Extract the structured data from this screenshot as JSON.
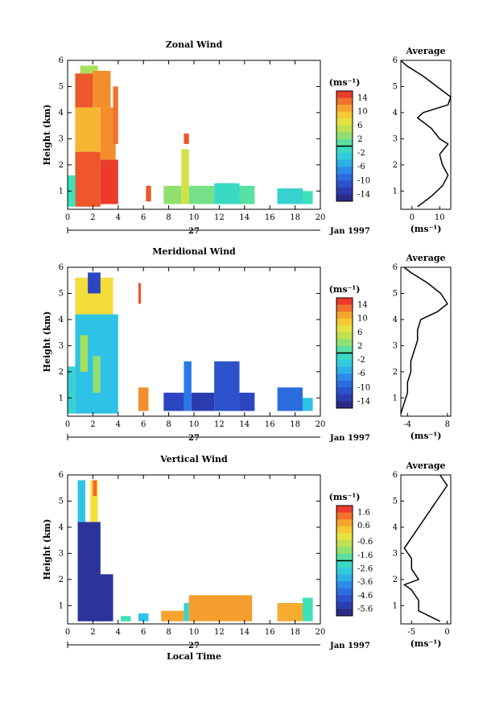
{
  "panels": [
    {
      "title": "Zonal Wind",
      "ylabel": "Height (km)",
      "xticks": [
        "0",
        "2",
        "4",
        "6",
        "8",
        "10",
        "12",
        "14",
        "16",
        "18",
        "20"
      ],
      "yticks": [
        "1",
        "2",
        "3",
        "4",
        "5",
        "6"
      ],
      "date_day": "27",
      "date_label": "Jan 1997",
      "cbar_unit": "(ms⁻¹)",
      "cbar_labels": [
        "14",
        "10",
        "6",
        "2",
        "-2",
        "-6",
        "-10",
        "-14"
      ],
      "avg_title": "Average",
      "avg_xticks": [
        "0",
        "10"
      ],
      "avg_yticks": [
        "1",
        "2",
        "3",
        "4",
        "5",
        "6"
      ],
      "avg_unit": "(ms⁻¹)"
    },
    {
      "title": "Meridional Wind",
      "ylabel": "Height (km)",
      "xticks": [
        "0",
        "2",
        "4",
        "6",
        "8",
        "10",
        "12",
        "14",
        "16",
        "18",
        "20"
      ],
      "yticks": [
        "1",
        "2",
        "3",
        "4",
        "5",
        "6"
      ],
      "date_day": "27",
      "date_label": "Jan 1997",
      "cbar_unit": "(ms⁻¹)",
      "cbar_labels": [
        "14",
        "10",
        "6",
        "2",
        "-2",
        "-6",
        "-10",
        "-14"
      ],
      "avg_title": "Average",
      "avg_xticks": [
        "-4",
        "8"
      ],
      "avg_yticks": [
        "1",
        "2",
        "3",
        "4",
        "5",
        "6"
      ],
      "avg_unit": "(ms⁻¹)"
    },
    {
      "title": "Vertical Wind",
      "ylabel": "Height (km)",
      "xticks": [
        "0",
        "2",
        "4",
        "6",
        "8",
        "10",
        "12",
        "14",
        "16",
        "18",
        "20"
      ],
      "yticks": [
        "1",
        "2",
        "3",
        "4",
        "5",
        "6"
      ],
      "date_day": "27",
      "date_label": "Jan 1997",
      "xlabel": "Local Time",
      "cbar_unit": "(ms⁻¹)",
      "cbar_labels": [
        "1.6",
        "0.6",
        "-0.6",
        "-1.6",
        "-2.6",
        "-3.6",
        "-4.6",
        "-5.6"
      ],
      "avg_title": "Average",
      "avg_xticks": [
        "-5",
        "0"
      ],
      "avg_yticks": [
        "1",
        "2",
        "3",
        "4",
        "5",
        "6"
      ],
      "avg_unit": "(ms⁻¹)"
    }
  ],
  "chart_data": [
    {
      "type": "heatmap",
      "title": "Zonal Wind",
      "ylabel": "Height (km)",
      "xlim": [
        0,
        20
      ],
      "ylim": [
        0.3,
        6
      ],
      "colorbar_range": [
        -16,
        16
      ],
      "colorbar_ticks": [
        14,
        10,
        6,
        2,
        -2,
        -6,
        -10,
        -14
      ],
      "cells": [
        {
          "x0": 0.6,
          "x1": 2.6,
          "y0": 0.4,
          "y1": 2.5,
          "v": 14
        },
        {
          "x0": 0.6,
          "x1": 2.6,
          "y0": 2.5,
          "y1": 4.2,
          "v": 10
        },
        {
          "x0": 0.6,
          "x1": 2.0,
          "y0": 4.2,
          "y1": 5.5,
          "v": 14
        },
        {
          "x0": 1.0,
          "x1": 2.4,
          "y0": 5.5,
          "y1": 5.8,
          "v": 4
        },
        {
          "x0": 2.0,
          "x1": 3.4,
          "y0": 4.2,
          "y1": 5.6,
          "v": 12
        },
        {
          "x0": 2.6,
          "x1": 4.0,
          "y0": 0.5,
          "y1": 2.2,
          "v": 15
        },
        {
          "x0": 2.6,
          "x1": 3.8,
          "y0": 2.2,
          "y1": 4.2,
          "v": 12
        },
        {
          "x0": 3.6,
          "x1": 4.0,
          "y0": 2.8,
          "y1": 5.0,
          "v": 13
        },
        {
          "x0": 0.0,
          "x1": 0.6,
          "y0": 0.4,
          "y1": 1.6,
          "v": 0
        },
        {
          "x0": 6.2,
          "x1": 6.6,
          "y0": 0.6,
          "y1": 1.2,
          "v": 14
        },
        {
          "x0": 7.6,
          "x1": 9.0,
          "y0": 0.5,
          "y1": 1.2,
          "v": 3
        },
        {
          "x0": 9.0,
          "x1": 9.6,
          "y0": 0.5,
          "y1": 2.6,
          "v": 6
        },
        {
          "x0": 9.2,
          "x1": 9.6,
          "y0": 2.8,
          "y1": 3.2,
          "v": 14
        },
        {
          "x0": 9.6,
          "x1": 11.6,
          "y0": 0.5,
          "y1": 1.2,
          "v": 2
        },
        {
          "x0": 11.6,
          "x1": 13.6,
          "y0": 0.5,
          "y1": 1.3,
          "v": -1
        },
        {
          "x0": 13.6,
          "x1": 14.8,
          "y0": 0.5,
          "y1": 1.2,
          "v": 1
        },
        {
          "x0": 16.6,
          "x1": 18.6,
          "y0": 0.5,
          "y1": 1.1,
          "v": -2
        },
        {
          "x0": 18.6,
          "x1": 19.4,
          "y0": 0.5,
          "y1": 1.0,
          "v": 0
        }
      ],
      "average_profile": {
        "title": "Average",
        "xticks": [
          0,
          10
        ],
        "xlim": [
          -4,
          14
        ],
        "height_km": [
          0.4,
          0.8,
          1.2,
          1.6,
          2.0,
          2.4,
          2.8,
          3.0,
          3.4,
          3.8,
          4.0,
          4.3,
          4.6,
          5.0,
          5.4,
          5.8,
          6.0
        ],
        "value": [
          2,
          7,
          11,
          13,
          11,
          10,
          13,
          10,
          7,
          2,
          4,
          13,
          14,
          9,
          4,
          -2,
          -4
        ]
      }
    },
    {
      "type": "heatmap",
      "title": "Meridional Wind",
      "ylabel": "Height (km)",
      "xlim": [
        0,
        20
      ],
      "ylim": [
        0.3,
        6
      ],
      "colorbar_range": [
        -16,
        16
      ],
      "colorbar_ticks": [
        14,
        10,
        6,
        2,
        -2,
        -6,
        -10,
        -14
      ],
      "cells": [
        {
          "x0": 0.6,
          "x1": 4.0,
          "y0": 0.4,
          "y1": 4.2,
          "v": -4
        },
        {
          "x0": 0.6,
          "x1": 3.6,
          "y0": 4.2,
          "y1": 5.6,
          "v": 8
        },
        {
          "x0": 1.6,
          "x1": 2.6,
          "y0": 5.0,
          "y1": 5.8,
          "v": -12
        },
        {
          "x0": 1.0,
          "x1": 1.6,
          "y0": 2.0,
          "y1": 3.4,
          "v": 4
        },
        {
          "x0": 2.0,
          "x1": 2.6,
          "y0": 1.2,
          "y1": 2.6,
          "v": 3
        },
        {
          "x0": 0.0,
          "x1": 0.6,
          "y0": 0.4,
          "y1": 2.2,
          "v": -2
        },
        {
          "x0": 5.6,
          "x1": 6.4,
          "y0": 0.5,
          "y1": 1.4,
          "v": 12
        },
        {
          "x0": 5.6,
          "x1": 5.8,
          "y0": 4.6,
          "y1": 5.4,
          "v": 14
        },
        {
          "x0": 7.6,
          "x1": 9.2,
          "y0": 0.5,
          "y1": 1.2,
          "v": -12
        },
        {
          "x0": 9.2,
          "x1": 9.8,
          "y0": 0.5,
          "y1": 2.4,
          "v": -8
        },
        {
          "x0": 9.8,
          "x1": 11.6,
          "y0": 0.5,
          "y1": 1.2,
          "v": -13
        },
        {
          "x0": 11.6,
          "x1": 13.6,
          "y0": 0.5,
          "y1": 2.4,
          "v": -11
        },
        {
          "x0": 13.6,
          "x1": 14.8,
          "y0": 0.5,
          "y1": 1.2,
          "v": -12
        },
        {
          "x0": 16.6,
          "x1": 18.6,
          "y0": 0.5,
          "y1": 1.4,
          "v": -9
        },
        {
          "x0": 18.6,
          "x1": 19.4,
          "y0": 0.5,
          "y1": 1.0,
          "v": -4
        }
      ],
      "average_profile": {
        "title": "Average",
        "xticks": [
          -4,
          8
        ],
        "xlim": [
          -6,
          9
        ],
        "height_km": [
          0.4,
          0.8,
          1.2,
          1.6,
          2.0,
          2.4,
          2.8,
          3.2,
          3.6,
          4.0,
          4.3,
          4.6,
          5.0,
          5.4,
          5.8,
          6.0
        ],
        "value": [
          -6,
          -5,
          -4,
          -4,
          -3,
          -3,
          -2,
          -1,
          -1,
          0,
          5,
          8,
          6,
          2,
          -3,
          -5
        ]
      }
    },
    {
      "type": "heatmap",
      "title": "Vertical Wind",
      "xlabel": "Local Time",
      "ylabel": "Height (km)",
      "xlim": [
        0,
        20
      ],
      "ylim": [
        0.3,
        6
      ],
      "colorbar_range": [
        -6.1,
        2.1
      ],
      "colorbar_ticks": [
        1.6,
        0.6,
        -0.6,
        -1.6,
        -2.6,
        -3.6,
        -4.6,
        -5.6
      ],
      "cells": [
        {
          "x0": 0.8,
          "x1": 2.6,
          "y0": 0.4,
          "y1": 4.2,
          "v": -5.6
        },
        {
          "x0": 0.8,
          "x1": 1.4,
          "y0": 4.2,
          "y1": 5.8,
          "v": -3.0
        },
        {
          "x0": 1.8,
          "x1": 2.4,
          "y0": 4.2,
          "y1": 5.8,
          "v": 0.0
        },
        {
          "x0": 2.0,
          "x1": 2.3,
          "y0": 5.2,
          "y1": 5.8,
          "v": 1.4
        },
        {
          "x0": 2.4,
          "x1": 3.6,
          "y0": 0.4,
          "y1": 2.2,
          "v": -5.6
        },
        {
          "x0": 4.2,
          "x1": 5.0,
          "y0": 0.4,
          "y1": 0.6,
          "v": -2.0
        },
        {
          "x0": 5.6,
          "x1": 6.4,
          "y0": 0.4,
          "y1": 0.7,
          "v": -3.0
        },
        {
          "x0": 7.4,
          "x1": 9.2,
          "y0": 0.4,
          "y1": 0.8,
          "v": 0.8
        },
        {
          "x0": 9.2,
          "x1": 9.6,
          "y0": 0.4,
          "y1": 1.1,
          "v": -2.5
        },
        {
          "x0": 9.6,
          "x1": 14.6,
          "y0": 0.4,
          "y1": 1.4,
          "v": 0.9
        },
        {
          "x0": 16.6,
          "x1": 18.6,
          "y0": 0.4,
          "y1": 1.1,
          "v": 0.7
        },
        {
          "x0": 18.6,
          "x1": 19.4,
          "y0": 0.4,
          "y1": 1.3,
          "v": -2.0
        }
      ],
      "average_profile": {
        "title": "Average",
        "xticks": [
          -5,
          0
        ],
        "xlim": [
          -6.5,
          0.5
        ],
        "height_km": [
          0.4,
          0.8,
          1.2,
          1.6,
          1.8,
          2.0,
          2.4,
          2.8,
          3.2,
          3.6,
          4.0,
          4.4,
          4.8,
          5.2,
          5.6,
          5.8,
          6.0
        ],
        "value": [
          -1,
          -4,
          -4,
          -5,
          -6,
          -4,
          -5,
          -5,
          -6,
          -5,
          -4,
          -3,
          -2,
          -1,
          0,
          -0.5,
          -1
        ]
      }
    }
  ]
}
